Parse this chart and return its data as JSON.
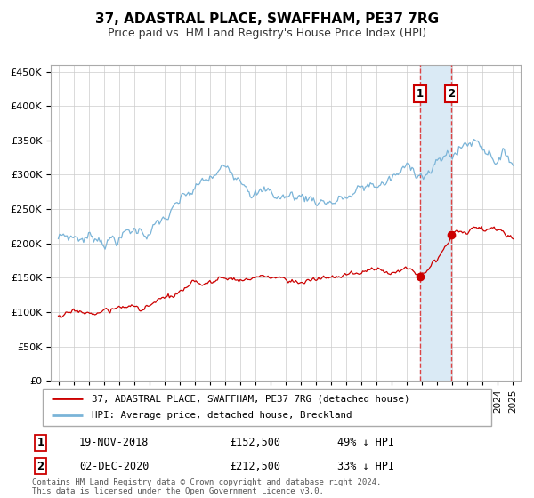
{
  "title": "37, ADASTRAL PLACE, SWAFFHAM, PE37 7RG",
  "subtitle": "Price paid vs. HM Land Registry's House Price Index (HPI)",
  "legend_line1": "37, ADASTRAL PLACE, SWAFFHAM, PE37 7RG (detached house)",
  "legend_line2": "HPI: Average price, detached house, Breckland",
  "annotation1_date": "19-NOV-2018",
  "annotation1_price": "£152,500",
  "annotation1_hpi": "49% ↓ HPI",
  "annotation2_date": "02-DEC-2020",
  "annotation2_price": "£212,500",
  "annotation2_hpi": "33% ↓ HPI",
  "point1_year": 2018.88,
  "point1_value_red": 152500,
  "point2_year": 2020.92,
  "point2_value_red": 212500,
  "hpi_color": "#7ab4d8",
  "price_color": "#cc0000",
  "marker_color": "#cc0000",
  "dashed_color": "#dd4444",
  "shade_color": "#daeaf5",
  "footer": "Contains HM Land Registry data © Crown copyright and database right 2024.\nThis data is licensed under the Open Government Licence v3.0.",
  "ylim": [
    0,
    460000
  ],
  "yticks": [
    0,
    50000,
    100000,
    150000,
    200000,
    250000,
    300000,
    350000,
    400000,
    450000
  ],
  "ytick_labels": [
    "£0",
    "£50K",
    "£100K",
    "£150K",
    "£200K",
    "£250K",
    "£300K",
    "£350K",
    "£400K",
    "£450K"
  ]
}
